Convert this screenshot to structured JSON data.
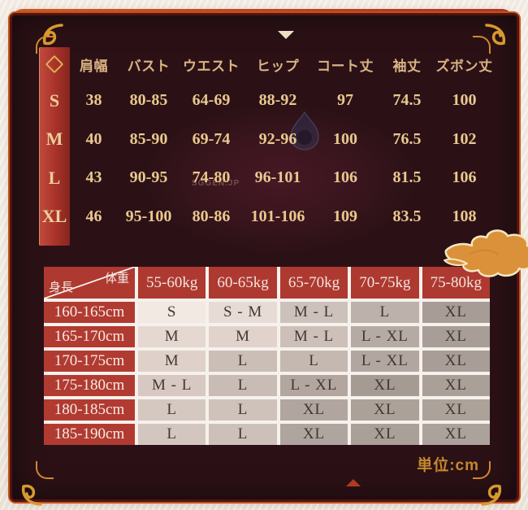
{
  "size_table": {
    "corner_icon": "diamond-outline",
    "columns": [
      "肩幅",
      "バスト",
      "ウエスト",
      "ヒップ",
      "コート丈",
      "袖丈",
      "ズボン丈"
    ],
    "rows": [
      {
        "size": "S",
        "values": [
          "38",
          "80-85",
          "64-69",
          "88-92",
          "97",
          "74.5",
          "100"
        ]
      },
      {
        "size": "M",
        "values": [
          "40",
          "85-90",
          "69-74",
          "92-96",
          "100",
          "76.5",
          "102"
        ]
      },
      {
        "size": "L",
        "values": [
          "43",
          "90-95",
          "74-80",
          "96-101",
          "106",
          "81.5",
          "106"
        ]
      },
      {
        "size": "XL",
        "values": [
          "46",
          "95-100",
          "80-86",
          "101-106",
          "109",
          "83.5",
          "108"
        ]
      }
    ]
  },
  "fit_table": {
    "weight_axis_label": "体重",
    "height_axis_label": "身長",
    "weight_columns": [
      "55-60kg",
      "60-65kg",
      "65-70kg",
      "70-75kg",
      "75-80kg"
    ],
    "rows": [
      {
        "height": "160-165cm",
        "sizes": [
          "S",
          "S - M",
          "M - L",
          "L",
          "XL"
        ],
        "colors": [
          "#f2e9e3",
          "#e7dcd5",
          "#cdc2bb",
          "#bcb1ab",
          "#a89d96"
        ]
      },
      {
        "height": "165-170cm",
        "sizes": [
          "M",
          "M",
          "M - L",
          "L - XL",
          "XL"
        ],
        "colors": [
          "#e5d8d0",
          "#e1d3cb",
          "#cdc0b9",
          "#b6aba4",
          "#a99e97"
        ]
      },
      {
        "height": "170-175cm",
        "sizes": [
          "M",
          "L",
          "L",
          "L - XL",
          "XL"
        ],
        "colors": [
          "#dfd1c9",
          "#cbbeb7",
          "#c5b8b1",
          "#b2a7a0",
          "#a99e97"
        ]
      },
      {
        "height": "175-180cm",
        "sizes": [
          "M - L",
          "L",
          "L - XL",
          "XL",
          "XL"
        ],
        "colors": [
          "#d7c9c1",
          "#c9bcb5",
          "#b3a69f",
          "#a69b93",
          "#aba098"
        ]
      },
      {
        "height": "180-185cm",
        "sizes": [
          "L",
          "L",
          "XL",
          "XL",
          "XL"
        ],
        "colors": [
          "#d5c8c1",
          "#cfc2bb",
          "#b1a69f",
          "#aca199",
          "#ada29a"
        ]
      },
      {
        "height": "185-190cm",
        "sizes": [
          "L",
          "L",
          "XL",
          "XL",
          "XL"
        ],
        "colors": [
          "#d3c6bf",
          "#cdc0b9",
          "#b0a59e",
          "#aba097",
          "#ada29b"
        ]
      }
    ]
  },
  "unit_label": "単位:cm",
  "watermark_text": "SGGEN.JP",
  "colors": {
    "frame_orange": "#cd5c1e",
    "frame_red": "#a93122",
    "cream_band": "#ecdfc2",
    "panel_dark": "#2b1116",
    "stripe_red": "#a83229",
    "value_gold": "#e9c88e",
    "header_tan": "#d9b383",
    "table_red": "#ae3930",
    "unit_gold": "#c4882e",
    "cloud_orange": "#db9139"
  }
}
